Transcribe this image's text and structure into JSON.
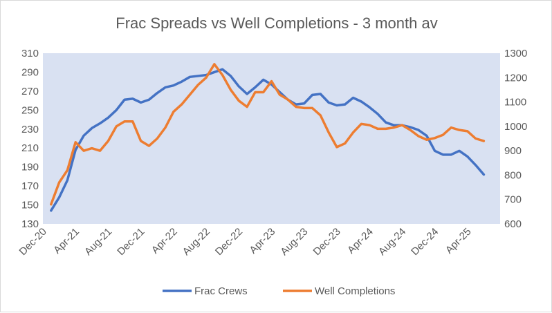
{
  "chart_data": {
    "type": "line",
    "title": "Frac Spreads vs Well Completions - 3 month av",
    "xlabel": "",
    "ylabel_left": "",
    "ylabel_right": "",
    "x_tick_labels": [
      "Dec-20",
      "Apr-21",
      "Aug-21",
      "Dec-21",
      "Apr-22",
      "Aug-22",
      "Dec-22",
      "Apr-23",
      "Aug-23",
      "Dec-23",
      "Apr-24",
      "Aug-24",
      "Dec-24",
      "Apr-25"
    ],
    "x_months_start": "Dec-20",
    "y_left": {
      "ylim": [
        130,
        310
      ],
      "ticks": [
        130,
        150,
        170,
        190,
        210,
        230,
        250,
        270,
        290,
        310
      ]
    },
    "y_right": {
      "ylim": [
        600,
        1300
      ],
      "ticks": [
        600,
        700,
        800,
        900,
        1000,
        1100,
        1200,
        1300
      ]
    },
    "grid": false,
    "legend_position": "bottom",
    "series": [
      {
        "name": "Frac Crews",
        "axis": "left",
        "color": "#4472C4",
        "start_month_index": 1,
        "values": [
          144,
          158,
          176,
          208,
          223,
          231,
          236,
          242,
          250,
          261,
          262,
          258,
          261,
          268,
          274,
          276,
          280,
          285,
          286,
          287,
          290,
          293,
          286,
          275,
          267,
          274,
          282,
          277,
          269,
          261,
          256,
          257,
          266,
          267,
          258,
          255,
          256,
          263,
          259,
          253,
          246,
          237,
          234,
          234,
          232,
          229,
          223,
          207,
          203,
          203,
          207,
          201,
          192,
          182
        ]
      },
      {
        "name": "Well Completions",
        "axis": "right",
        "color": "#ED7D31",
        "start_month_index": 1,
        "values": [
          680,
          770,
          820,
          935,
          900,
          910,
          900,
          940,
          1000,
          1020,
          1020,
          940,
          920,
          950,
          995,
          1060,
          1090,
          1130,
          1170,
          1200,
          1255,
          1210,
          1150,
          1105,
          1080,
          1140,
          1140,
          1185,
          1130,
          1110,
          1080,
          1075,
          1075,
          1045,
          975,
          915,
          930,
          975,
          1010,
          1005,
          990,
          990,
          995,
          1005,
          985,
          960,
          945,
          952,
          965,
          995,
          985,
          980,
          950,
          940
        ]
      }
    ]
  }
}
